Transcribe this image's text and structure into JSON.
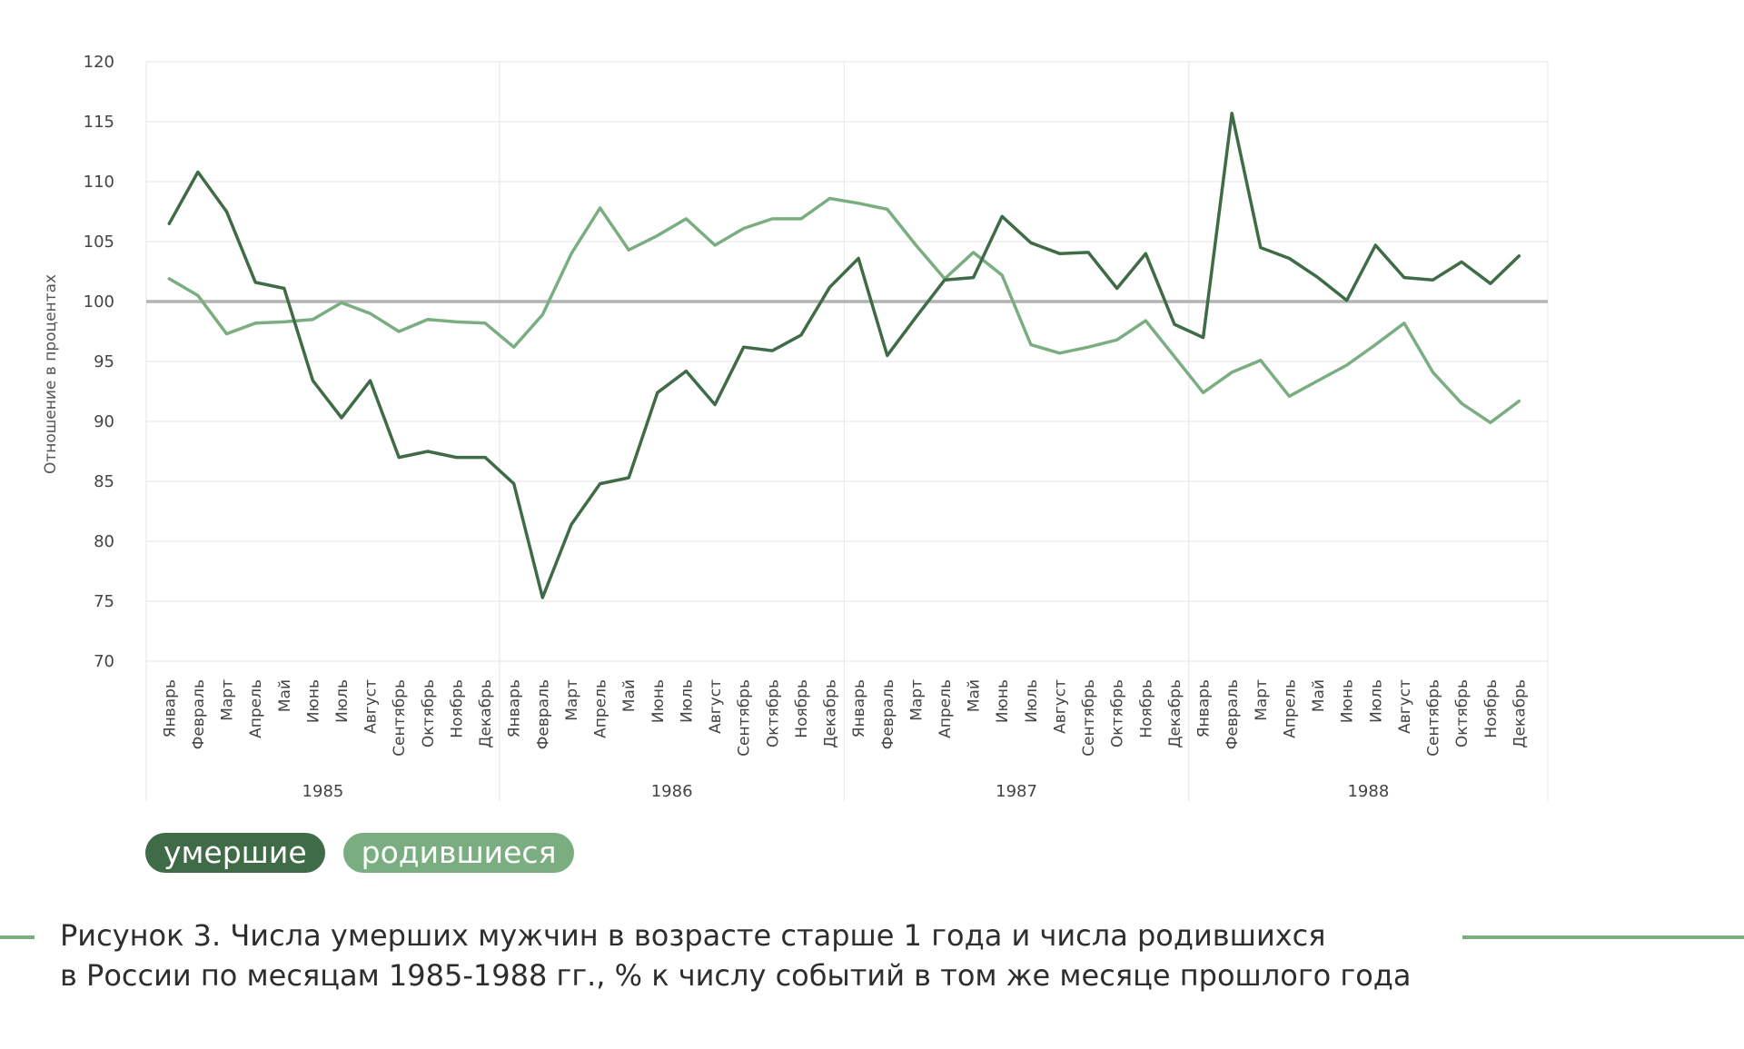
{
  "chart_data": {
    "type": "line",
    "ylabel": "Отношение в процентах",
    "ylim": [
      70,
      120
    ],
    "yticks": [
      70,
      75,
      80,
      85,
      90,
      95,
      100,
      105,
      110,
      115,
      120
    ],
    "reference_line": 100,
    "months": [
      "Январь",
      "Февраль",
      "Март",
      "Апрель",
      "Май",
      "Июнь",
      "Июль",
      "Август",
      "Сентябрь",
      "Октябрь",
      "Ноябрь",
      "Декабрь"
    ],
    "years": [
      "1985",
      "1986",
      "1987",
      "1988"
    ],
    "grid": true,
    "series": [
      {
        "name": "умершие",
        "color": "#3f6b47",
        "values": [
          106.5,
          110.8,
          107.5,
          101.6,
          101.1,
          93.4,
          90.3,
          93.4,
          87.0,
          87.5,
          87.0,
          87.0,
          84.8,
          75.3,
          81.4,
          84.8,
          85.3,
          92.4,
          94.2,
          91.4,
          96.2,
          95.9,
          97.2,
          101.2,
          103.6,
          95.5,
          98.7,
          101.8,
          102.0,
          107.1,
          104.9,
          104.0,
          104.1,
          101.1,
          104.0,
          98.1,
          97.0,
          115.7,
          104.5,
          103.6,
          102.0,
          100.1,
          104.7,
          102.0,
          101.8,
          103.3,
          101.5,
          103.8
        ]
      },
      {
        "name": "родившиеся",
        "color": "#7aae80",
        "values": [
          101.9,
          100.5,
          97.3,
          98.2,
          98.3,
          98.5,
          99.9,
          99.0,
          97.5,
          98.5,
          98.3,
          98.2,
          96.2,
          98.9,
          104.0,
          107.8,
          104.3,
          105.5,
          106.9,
          104.7,
          106.1,
          106.9,
          106.9,
          108.6,
          108.2,
          107.7,
          104.7,
          101.9,
          104.1,
          102.2,
          96.4,
          95.7,
          96.2,
          96.8,
          98.4,
          95.4,
          92.4,
          94.1,
          95.1,
          92.1,
          93.4,
          94.7,
          96.4,
          98.2,
          94.1,
          91.5,
          89.9,
          91.7
        ]
      }
    ]
  },
  "legend": {
    "deaths": "умершие",
    "births": "родившиеся"
  },
  "caption": {
    "line1": "Рисунок 3. Числа умерших мужчин в возрасте старше 1 года и числа родившихся",
    "line2": "в России по месяцам 1985-1988 гг., % к числу событий в том же месяце прошлого года"
  }
}
